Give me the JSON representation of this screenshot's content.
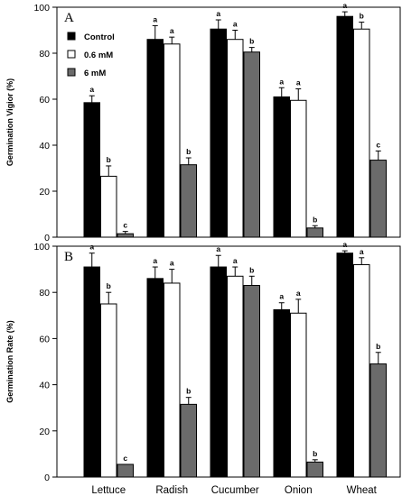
{
  "chart_data": [
    {
      "type": "bar",
      "panel": "A",
      "ylabel": "Germination Vigior  (%)",
      "ylim": [
        0,
        100
      ],
      "yticks": [
        0,
        20,
        40,
        60,
        80,
        100
      ],
      "categories": [
        "Lettuce",
        "Radish",
        "Cucumber",
        "Onion",
        "Wheat"
      ],
      "series": [
        {
          "name": "Control",
          "color": "#000000",
          "values": [
            58.5,
            86,
            90.5,
            61,
            96
          ],
          "errors": [
            3,
            6,
            4,
            4,
            2
          ],
          "letters": [
            "a",
            "a",
            "a",
            "a",
            "a"
          ]
        },
        {
          "name": "0.6 mM",
          "color": "#ffffff",
          "values": [
            26.5,
            84,
            86,
            59.5,
            90.5
          ],
          "errors": [
            4.5,
            3,
            4,
            5,
            3
          ],
          "letters": [
            "b",
            "a",
            "a",
            "a",
            "b"
          ]
        },
        {
          "name": "6 mM",
          "color": "#6b6b6b",
          "values": [
            1.5,
            31.5,
            80.5,
            4,
            33.5
          ],
          "errors": [
            1,
            3,
            2,
            1,
            4
          ],
          "letters": [
            "c",
            "b",
            "b",
            "b",
            "c"
          ]
        }
      ],
      "legend": "top-left"
    },
    {
      "type": "bar",
      "panel": "B",
      "ylabel": "Germination Rate  (%)",
      "ylim": [
        0,
        100
      ],
      "yticks": [
        0,
        20,
        40,
        60,
        80,
        100
      ],
      "categories": [
        "Lettuce",
        "Radish",
        "Cucumber",
        "Onion",
        "Wheat"
      ],
      "series": [
        {
          "name": "Control",
          "color": "#000000",
          "values": [
            91,
            86,
            91,
            72.5,
            97
          ],
          "errors": [
            6,
            5,
            5,
            3,
            1
          ],
          "letters": [
            "a",
            "a",
            "a",
            "a",
            "a"
          ]
        },
        {
          "name": "0.6 mM",
          "color": "#ffffff",
          "values": [
            75,
            84,
            87,
            71,
            92
          ],
          "errors": [
            5,
            6,
            4,
            6,
            3
          ],
          "letters": [
            "b",
            "a",
            "a",
            "a",
            "a"
          ]
        },
        {
          "name": "6 mM",
          "color": "#6b6b6b",
          "values": [
            5.5,
            31.5,
            83,
            6.5,
            49
          ],
          "errors": [
            0,
            3,
            4,
            1,
            5
          ],
          "letters": [
            "c",
            "b",
            "b",
            "b",
            "b"
          ]
        }
      ]
    }
  ]
}
